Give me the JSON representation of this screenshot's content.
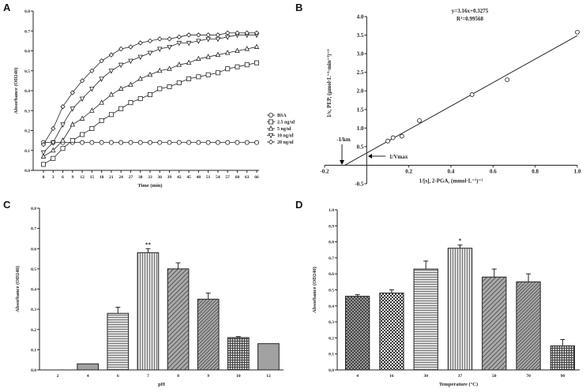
{
  "panels": [
    "A",
    "B",
    "C",
    "D"
  ],
  "chart_data": [
    {
      "id": "A",
      "type": "line",
      "xlabel": "Time (min)",
      "ylabel": "Absorbance (OD240)",
      "xlim": [
        0,
        66
      ],
      "ylim": [
        0,
        0.8
      ],
      "x": [
        0,
        3,
        6,
        9,
        12,
        15,
        18,
        21,
        24,
        27,
        30,
        33,
        36,
        39,
        42,
        45,
        48,
        51,
        54,
        57,
        60,
        63,
        66
      ],
      "yticks": [
        "0.0",
        "0.1",
        "0.2",
        "0.3",
        "0.4",
        "0.5",
        "0.6",
        "0.7",
        "0.8"
      ],
      "legend": "right",
      "series": [
        {
          "name": "BSA",
          "marker": "circle",
          "values": [
            0.14,
            0.14,
            0.14,
            0.14,
            0.14,
            0.14,
            0.14,
            0.14,
            0.14,
            0.14,
            0.14,
            0.14,
            0.14,
            0.14,
            0.14,
            0.14,
            0.14,
            0.14,
            0.14,
            0.14,
            0.14,
            0.14,
            0.14
          ]
        },
        {
          "name": "2.5 ng/ul",
          "marker": "square",
          "values": [
            0.03,
            0.06,
            0.11,
            0.15,
            0.18,
            0.21,
            0.25,
            0.28,
            0.31,
            0.34,
            0.36,
            0.38,
            0.41,
            0.42,
            0.44,
            0.46,
            0.47,
            0.48,
            0.49,
            0.51,
            0.52,
            0.53,
            0.54
          ]
        },
        {
          "name": "5 ng/ul",
          "marker": "triangle-up",
          "values": [
            0.07,
            0.1,
            0.15,
            0.23,
            0.26,
            0.3,
            0.34,
            0.38,
            0.41,
            0.43,
            0.46,
            0.48,
            0.5,
            0.51,
            0.53,
            0.54,
            0.56,
            0.57,
            0.58,
            0.59,
            0.6,
            0.61,
            0.62
          ]
        },
        {
          "name": "10 ng/ul",
          "marker": "triangle-down",
          "values": [
            0.09,
            0.14,
            0.23,
            0.31,
            0.36,
            0.41,
            0.46,
            0.5,
            0.53,
            0.55,
            0.57,
            0.59,
            0.61,
            0.62,
            0.64,
            0.64,
            0.65,
            0.66,
            0.66,
            0.67,
            0.68,
            0.68,
            0.68
          ]
        },
        {
          "name": "20 ng/ul",
          "marker": "diamond",
          "values": [
            0.13,
            0.21,
            0.32,
            0.39,
            0.45,
            0.5,
            0.55,
            0.58,
            0.61,
            0.62,
            0.64,
            0.65,
            0.66,
            0.66,
            0.67,
            0.68,
            0.68,
            0.68,
            0.68,
            0.69,
            0.69,
            0.69,
            0.69
          ]
        }
      ]
    },
    {
      "id": "B",
      "type": "scatter",
      "xlabel": "1/[s], 2-PGA, (mmol·L⁻¹)⁻¹",
      "ylabel": "1/v, PEP, (μmol·L⁻¹·min⁻¹)⁻¹",
      "xlim": [
        -0.2,
        1.0
      ],
      "ylim": [
        -0.5,
        4.0
      ],
      "xticks": [
        "-0.2",
        "0.2",
        "0.4",
        "0.6",
        "0.8",
        "1.0"
      ],
      "yticks": [
        "-0.5",
        "0.5",
        "1.0",
        "1.5",
        "2.0",
        "2.5",
        "3.0",
        "3.5",
        "4.0"
      ],
      "points": [
        [
          0.1,
          0.65
        ],
        [
          0.125,
          0.74
        ],
        [
          0.167,
          0.78
        ],
        [
          0.25,
          1.2
        ],
        [
          0.5,
          1.9
        ],
        [
          0.667,
          2.3
        ],
        [
          1.0,
          3.58
        ]
      ],
      "fit": {
        "slope": 3.16,
        "intercept": 0.3275,
        "equation": "y=3.16x+0.3275",
        "r2": "R²=0.99568"
      },
      "annotations": [
        "-1/km",
        "1/Vmax"
      ]
    },
    {
      "id": "C",
      "type": "bar",
      "xlabel": "pH",
      "ylabel": "Absorbance (OD240)",
      "ylim": [
        0,
        0.8
      ],
      "yticks": [
        "0.0",
        "0.1",
        "0.2",
        "0.3",
        "0.4",
        "0.5",
        "0.6",
        "0.7",
        "0.8"
      ],
      "categories": [
        "2",
        "4",
        "6",
        "7",
        "8",
        "9",
        "10",
        "12"
      ],
      "values": [
        0,
        0.03,
        0.28,
        0.58,
        0.5,
        0.35,
        0.16,
        0.13
      ],
      "errors": [
        0,
        0,
        0.03,
        0.02,
        0.03,
        0.03,
        0.005,
        0
      ],
      "significance": {
        "7": "**"
      }
    },
    {
      "id": "D",
      "type": "bar",
      "xlabel": "Temperature (°C)",
      "ylabel": "Absorbance (OD240)",
      "ylim": [
        0,
        1.0
      ],
      "yticks": [
        "0.0",
        "0.1",
        "0.2",
        "0.3",
        "0.4",
        "0.5",
        "0.6",
        "0.7",
        "0.8",
        "0.9",
        "1.0"
      ],
      "categories": [
        "4",
        "16",
        "30",
        "37",
        "50",
        "70",
        "90"
      ],
      "values": [
        0.46,
        0.48,
        0.63,
        0.76,
        0.58,
        0.55,
        0.15
      ],
      "errors": [
        0.01,
        0.02,
        0.05,
        0.02,
        0.05,
        0.05,
        0.04
      ],
      "significance": {
        "37": "*"
      }
    }
  ]
}
